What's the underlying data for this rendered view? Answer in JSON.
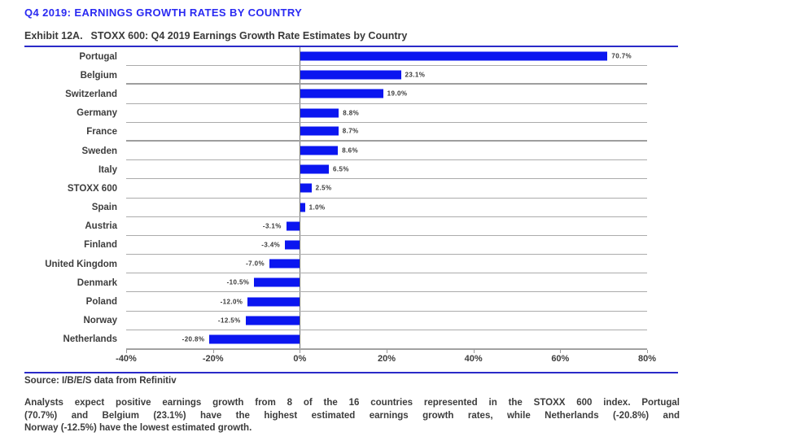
{
  "page": {
    "main_title": "Q4 2019: EARNINGS GROWTH RATES BY COUNTRY",
    "exhibit_label": "Exhibit 12A.",
    "exhibit_title": "STOXX 600: Q4 2019 Earnings Growth Rate Estimates by Country",
    "source": "Source: I/B/E/S data from Refinitiv",
    "commentary_lines": [
      "Analysts expect positive earnings growth from 8 of the 16 countries represented in the STOXX 600 index. Portugal",
      "(70.7%) and Belgium (23.1%) have the highest estimated earnings growth rates, while Netherlands (-20.8%) and",
      "Norway (-12.5%) have the lowest estimated growth."
    ]
  },
  "colors": {
    "bar": "#0b16f0",
    "title_blue": "#2a2af2",
    "rule_blue": "#2a2ac8",
    "gridline": "#ababab",
    "axis_line": "#9a9a9a",
    "zero_line": "#6e6e6e",
    "text_dark": "#3b3b3b"
  },
  "chart_data": {
    "type": "bar",
    "orientation": "horizontal",
    "title": "Exhibit 12A.  STOXX 600: Q4 2019 Earnings Growth Rate Estimates by Country",
    "xlabel": "",
    "ylabel": "",
    "xlim": [
      -40,
      80
    ],
    "grid": "horizontal-between-categories",
    "legend": "none",
    "categories": [
      "Portugal",
      "Belgium",
      "Switzerland",
      "Germany",
      "France",
      "Sweden",
      "Italy",
      "STOXX 600",
      "Spain",
      "Austria",
      "Finland",
      "United Kingdom",
      "Denmark",
      "Poland",
      "Norway",
      "Netherlands"
    ],
    "values": [
      70.7,
      23.1,
      19.0,
      8.8,
      8.7,
      8.6,
      6.5,
      2.5,
      1.0,
      -3.1,
      -3.4,
      -7.0,
      -10.5,
      -12.0,
      -12.5,
      -20.8
    ],
    "data_labels": [
      "70.7%",
      "23.1%",
      "19.0%",
      "8.8%",
      "8.7%",
      "8.6%",
      "6.5%",
      "2.5%",
      "1.0%",
      "-3.1%",
      "-3.4%",
      "-7.0%",
      "-10.5%",
      "-12.0%",
      "-12.5%",
      "-20.8%"
    ],
    "x_ticks": [
      {
        "value": -40,
        "label": "-40%"
      },
      {
        "value": -20,
        "label": "-20%"
      },
      {
        "value": 0,
        "label": "0%"
      },
      {
        "value": 20,
        "label": "20%"
      },
      {
        "value": 40,
        "label": "40%"
      },
      {
        "value": 60,
        "label": "60%"
      },
      {
        "value": 80,
        "label": "80%"
      }
    ]
  }
}
